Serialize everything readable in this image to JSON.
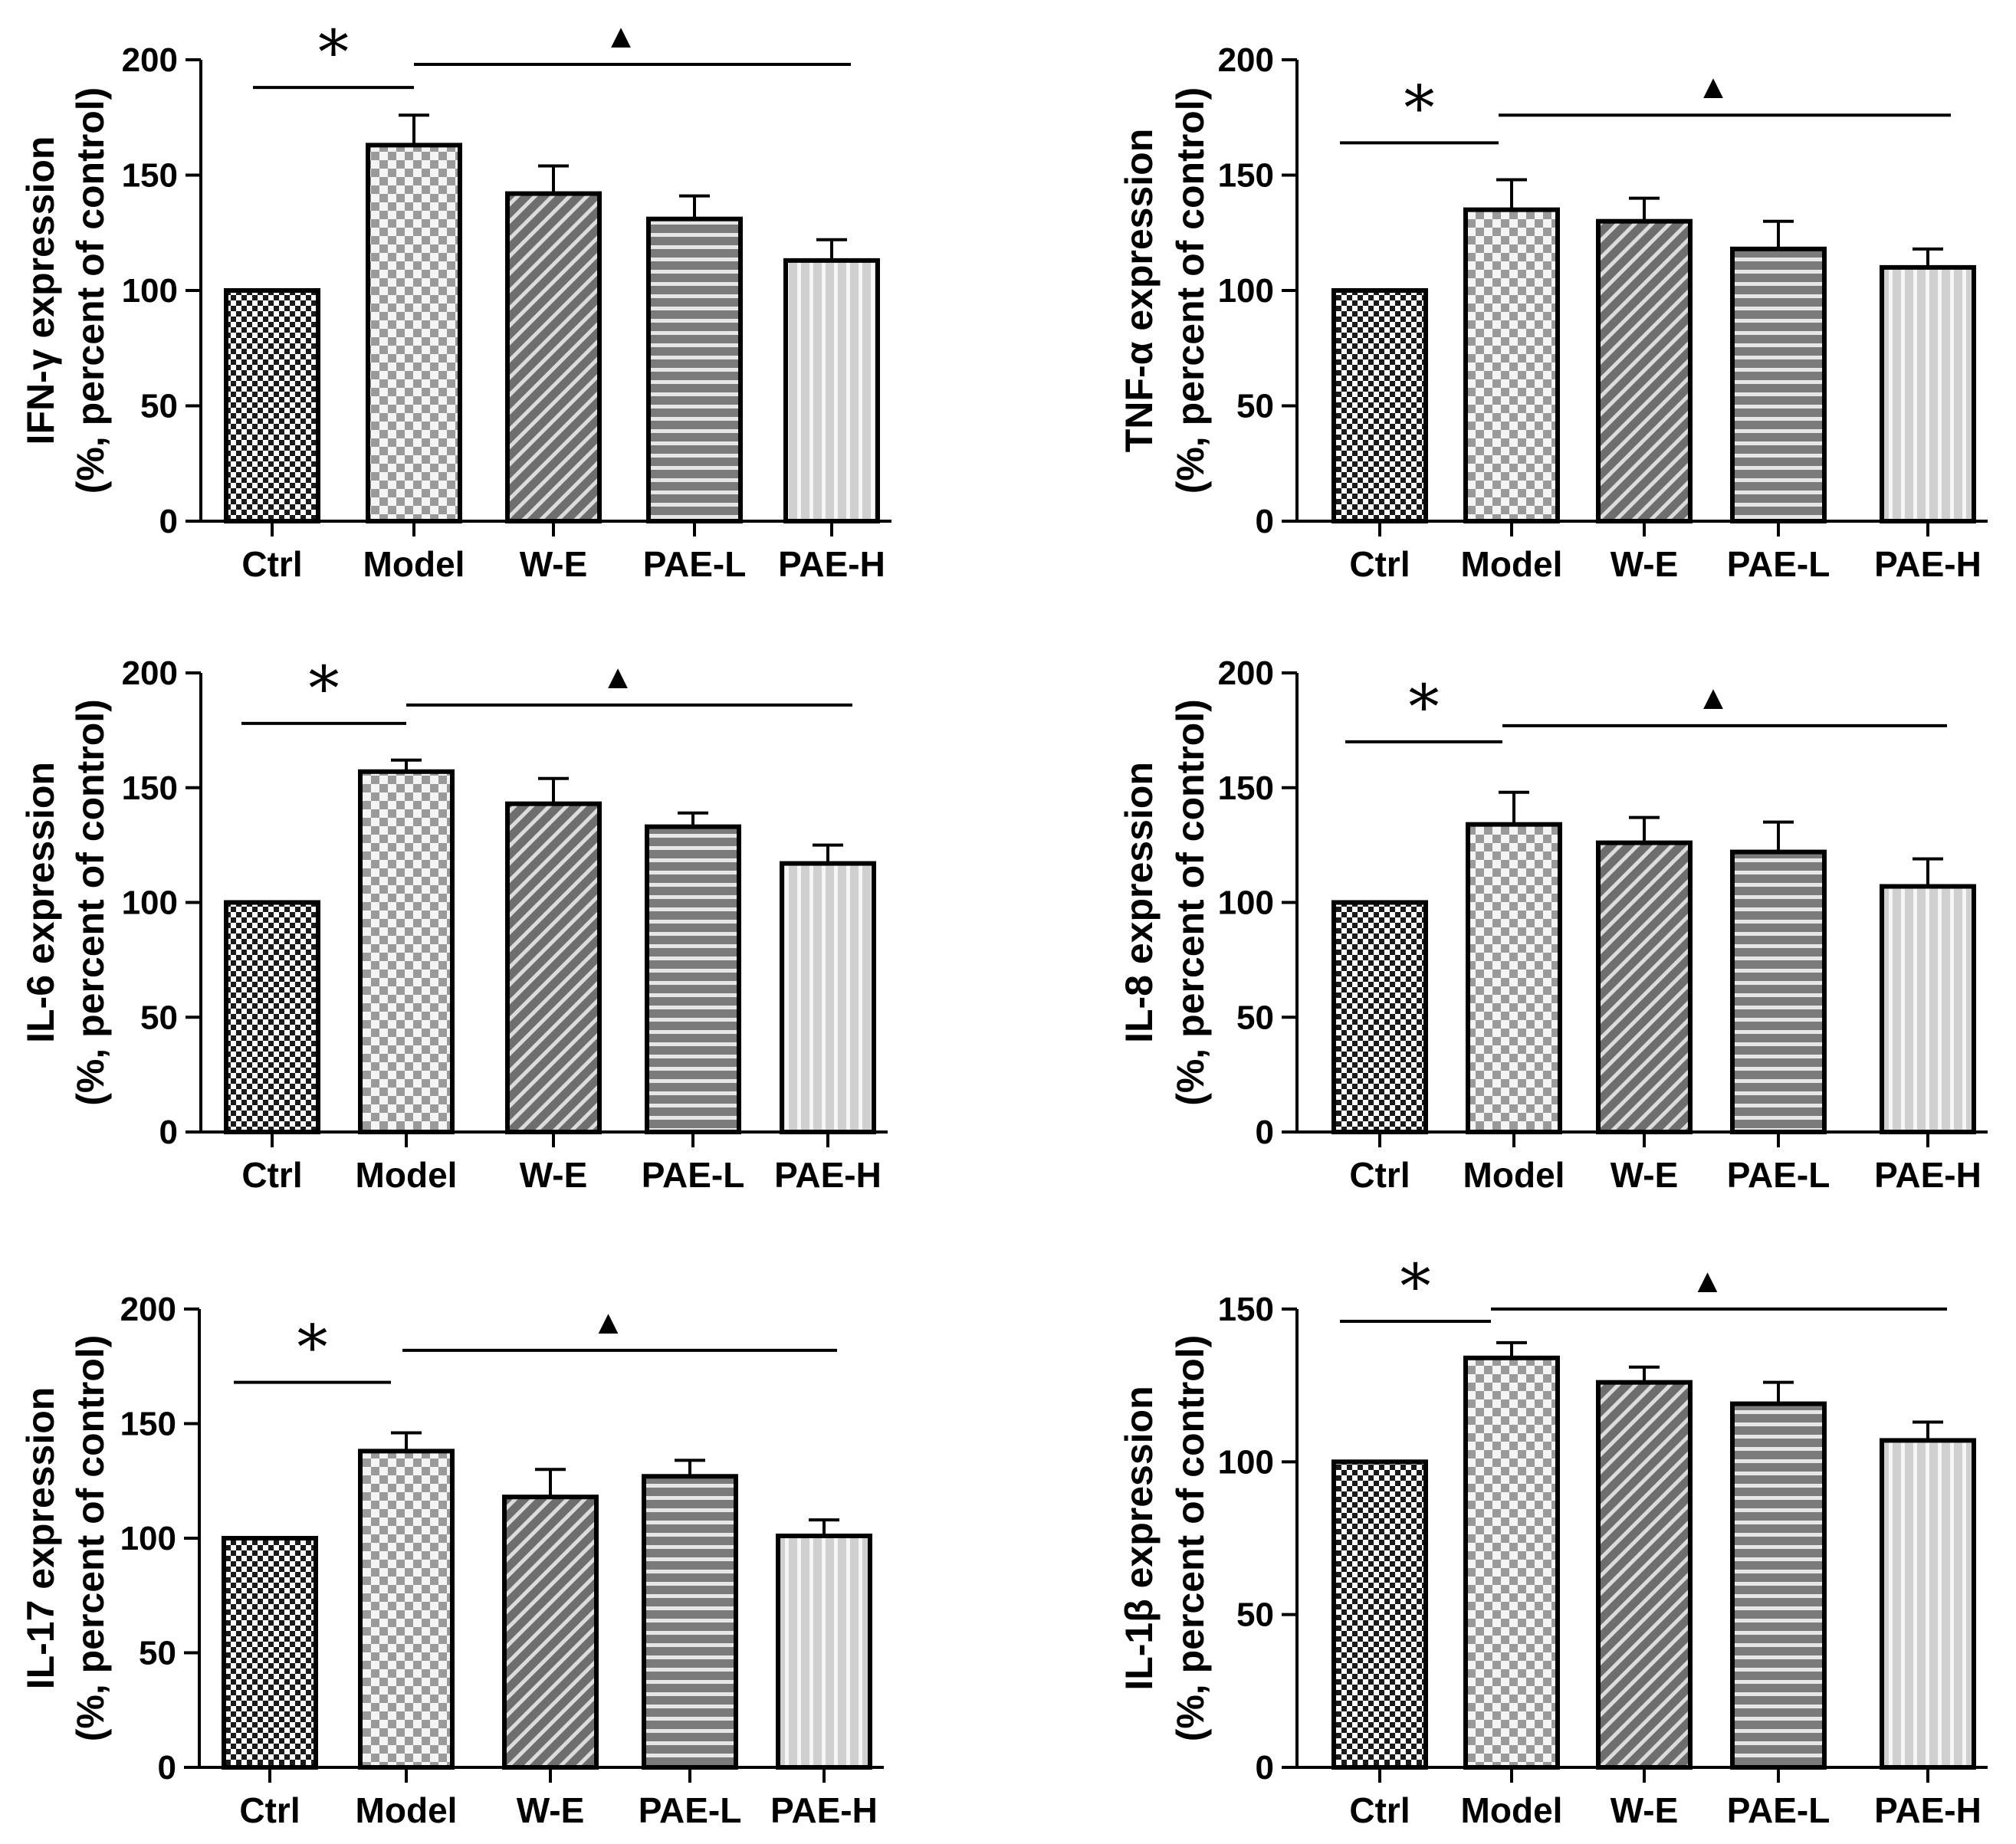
{
  "chart_data": [
    {
      "type": "bar",
      "categories": [
        "Ctrl",
        "Model",
        "W-E",
        "PAE-L",
        "PAE-H"
      ],
      "values": [
        100,
        163,
        142,
        131,
        113
      ],
      "errors": [
        0,
        13,
        12,
        10,
        9
      ],
      "ylabel_line1": "IFN-γ expression",
      "ylabel_line2": "(%, percent of control)",
      "ylim": [
        0,
        200
      ],
      "yticks": [
        0,
        50,
        100,
        150,
        200
      ],
      "sig_left": "*",
      "sig_right": "▲",
      "sig_left_y": 188,
      "sig_right_y": 198
    },
    {
      "type": "bar",
      "categories": [
        "Ctrl",
        "Model",
        "W-E",
        "PAE-L",
        "PAE-H"
      ],
      "values": [
        100,
        135,
        130,
        118,
        110
      ],
      "errors": [
        0,
        13,
        10,
        12,
        8
      ],
      "ylabel_line1": "TNF-α expression",
      "ylabel_line2": "(%, percent of control)",
      "ylim": [
        0,
        200
      ],
      "yticks": [
        0,
        50,
        100,
        150,
        200
      ],
      "sig_left": "*",
      "sig_right": "▲",
      "sig_left_y": 164,
      "sig_right_y": 176
    },
    {
      "type": "bar",
      "categories": [
        "Ctrl",
        "Model",
        "W-E",
        "PAE-L",
        "PAE-H"
      ],
      "values": [
        100,
        157,
        143,
        133,
        117
      ],
      "errors": [
        0,
        5,
        11,
        6,
        8
      ],
      "ylabel_line1": "IL-6 expression",
      "ylabel_line2": "(%, percent of control)",
      "ylim": [
        0,
        200
      ],
      "yticks": [
        0,
        50,
        100,
        150,
        200
      ],
      "sig_left": "*",
      "sig_right": "▲",
      "sig_left_y": 178,
      "sig_right_y": 186
    },
    {
      "type": "bar",
      "categories": [
        "Ctrl",
        "Model",
        "W-E",
        "PAE-L",
        "PAE-H"
      ],
      "values": [
        100,
        134,
        126,
        122,
        107
      ],
      "errors": [
        0,
        14,
        11,
        13,
        12
      ],
      "ylabel_line1": "IL-8 expression",
      "ylabel_line2": "(%, percent of control)",
      "ylim": [
        0,
        200
      ],
      "yticks": [
        0,
        50,
        100,
        150,
        200
      ],
      "sig_left": "*",
      "sig_right": "▲",
      "sig_left_y": 170,
      "sig_right_y": 177
    },
    {
      "type": "bar",
      "categories": [
        "Ctrl",
        "Model",
        "W-E",
        "PAE-L",
        "PAE-H"
      ],
      "values": [
        100,
        138,
        118,
        127,
        101
      ],
      "errors": [
        0,
        8,
        12,
        7,
        7
      ],
      "ylabel_line1": "IL-17 expression",
      "ylabel_line2": "(%, percent of control)",
      "ylim": [
        0,
        200
      ],
      "yticks": [
        0,
        50,
        100,
        150,
        200
      ],
      "sig_left": "*",
      "sig_right": "▲",
      "sig_left_y": 168,
      "sig_right_y": 182
    },
    {
      "type": "bar",
      "categories": [
        "Ctrl",
        "Model",
        "W-E",
        "PAE-L",
        "PAE-H"
      ],
      "values": [
        100,
        134,
        126,
        119,
        107
      ],
      "errors": [
        0,
        5,
        5,
        7,
        6
      ],
      "ylabel_line1": "IL-1β expression",
      "ylabel_line2": "(%, percent of control)",
      "ylim": [
        0,
        150
      ],
      "yticks": [
        0,
        50,
        100,
        150
      ],
      "sig_left": "*",
      "sig_right": "▲",
      "sig_left_y": 146,
      "sig_right_y": 150
    }
  ]
}
